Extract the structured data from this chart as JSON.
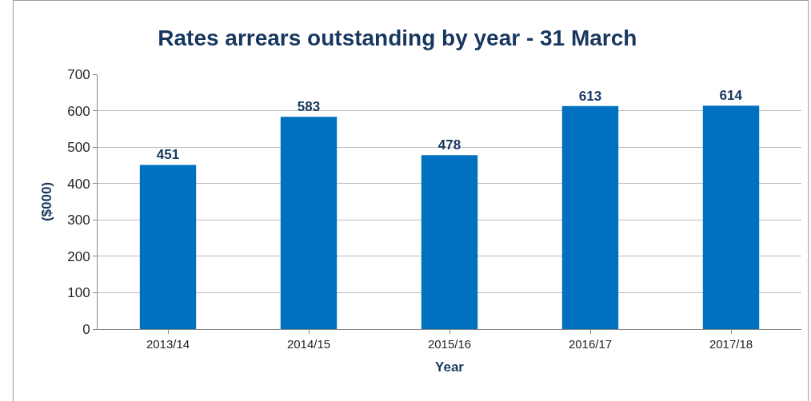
{
  "chart_data": {
    "type": "bar",
    "title": "Rates arrears outstanding by year - 31 March",
    "xlabel": "Year",
    "ylabel": "($000)",
    "categories": [
      "2013/14",
      "2014/15",
      "2015/16",
      "2016/17",
      "2017/18"
    ],
    "values": [
      451,
      583,
      478,
      613,
      614
    ],
    "color": "#0070c0",
    "ylim": [
      0,
      700
    ],
    "yticks": [
      0,
      100,
      200,
      300,
      400,
      500,
      600,
      700
    ],
    "grid": "y",
    "data_labels": true
  }
}
